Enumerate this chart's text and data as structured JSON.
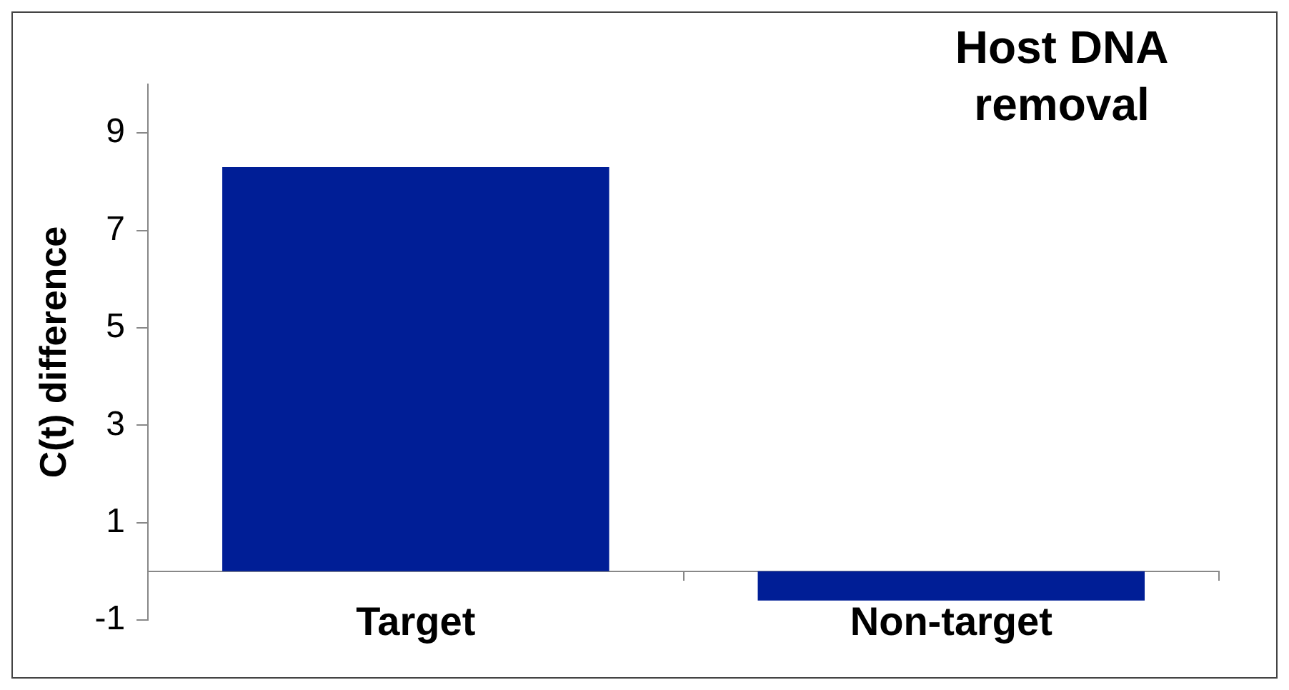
{
  "chart_data": {
    "type": "bar",
    "title": "Host DNA removal",
    "ylabel": "C(t) difference",
    "categories": [
      "Target",
      "Non-target"
    ],
    "values": [
      8.3,
      -0.6
    ],
    "color": "#001e96",
    "ylim": [
      -1,
      10
    ],
    "yticks": [
      9,
      7,
      5,
      3,
      1,
      -1
    ],
    "grid": false,
    "legend": false
  }
}
